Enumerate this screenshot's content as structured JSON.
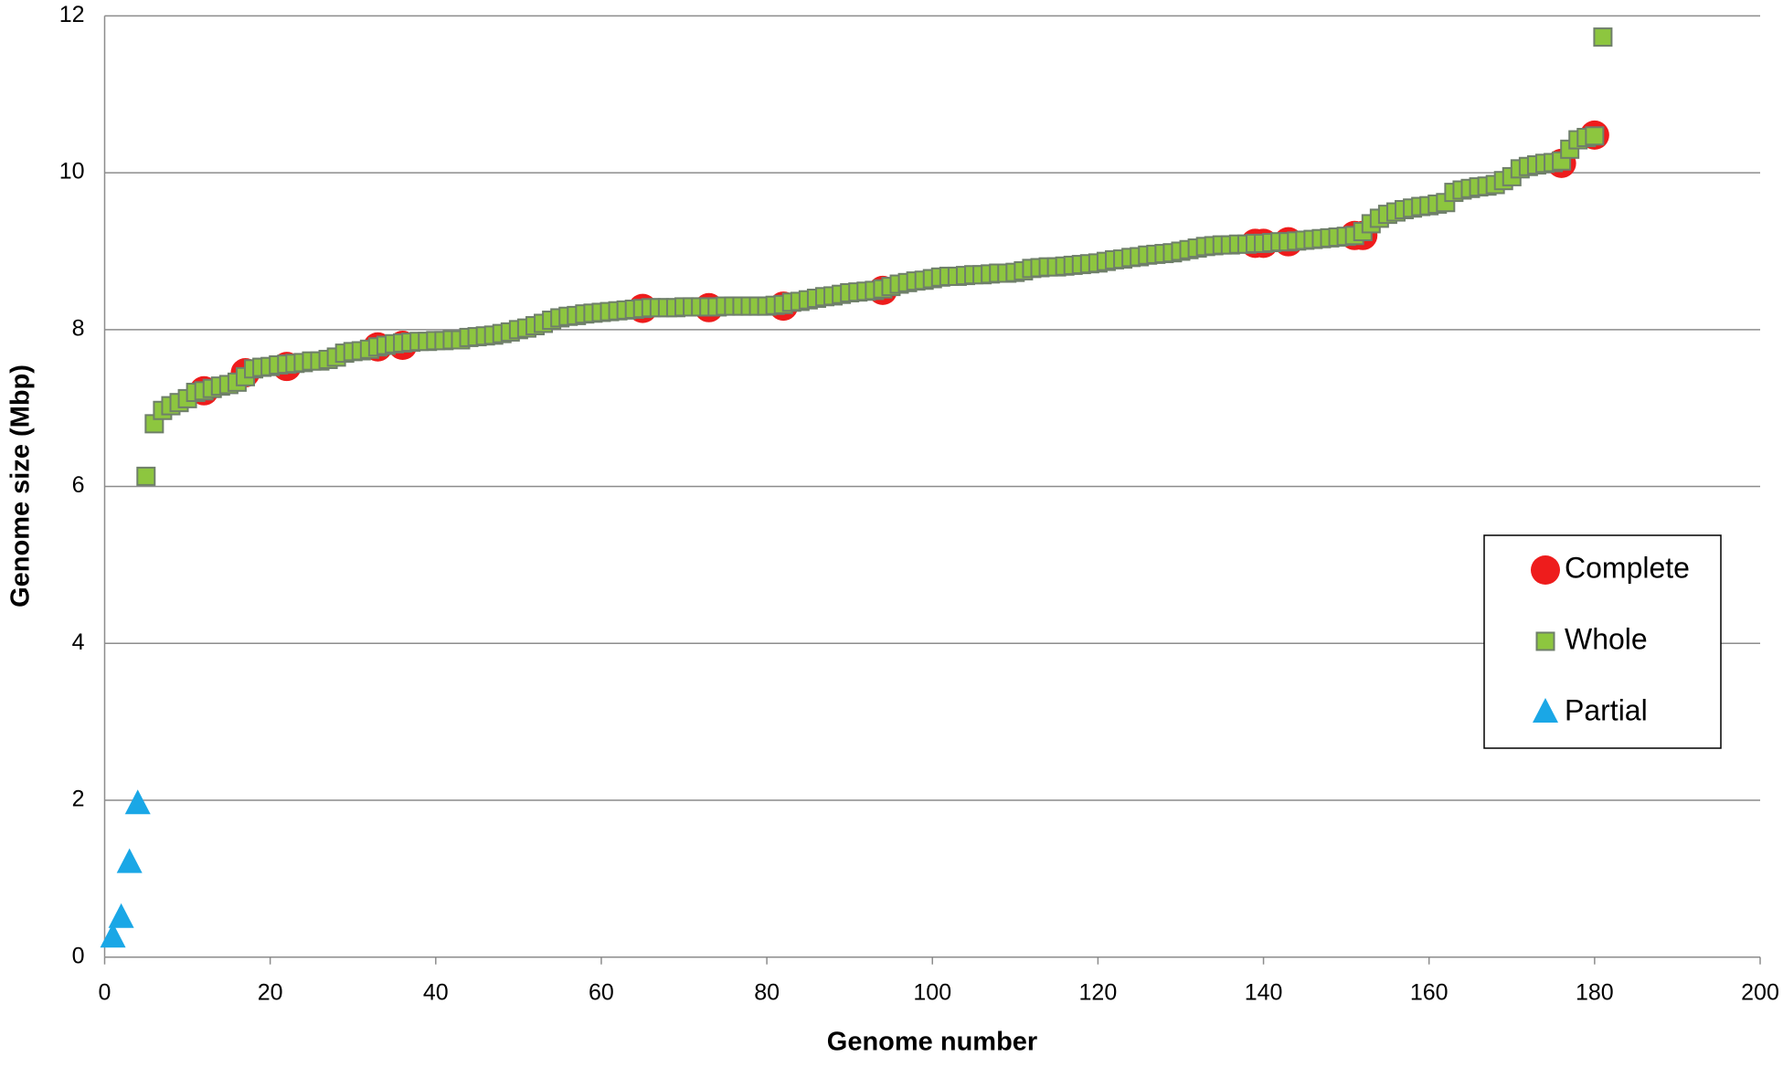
{
  "chart_data": {
    "type": "scatter",
    "x_label": "Genome number",
    "y_label": "Genome size (Mbp)",
    "xlim": [
      0,
      200
    ],
    "xticks": [
      0,
      20,
      40,
      60,
      80,
      100,
      120,
      140,
      160,
      180,
      200
    ],
    "ylim": [
      0,
      12
    ],
    "yticks": [
      0,
      2,
      4,
      6,
      8,
      10,
      12
    ],
    "grid": true,
    "legend": "right",
    "series": [
      {
        "name": "Complete",
        "color": "#ee1c1c",
        "marker": "circle",
        "x": [
          12,
          17,
          22,
          33,
          36,
          65,
          73,
          82,
          94,
          139,
          140,
          143,
          151,
          152,
          176,
          180
        ],
        "values": [
          7.22,
          7.45,
          7.53,
          7.78,
          7.8,
          8.27,
          8.28,
          8.3,
          8.5,
          9.1,
          9.1,
          9.12,
          9.2,
          9.2,
          10.12,
          10.48
        ]
      },
      {
        "name": "Whole",
        "color": "#8dc63f",
        "marker": "square",
        "x": [
          5,
          6,
          7,
          8,
          9,
          10,
          11,
          12,
          13,
          14,
          15,
          16,
          17,
          18,
          19,
          20,
          21,
          22,
          23,
          24,
          25,
          26,
          27,
          28,
          29,
          30,
          31,
          32,
          33,
          34,
          35,
          36,
          37,
          38,
          39,
          40,
          41,
          42,
          43,
          44,
          45,
          46,
          47,
          48,
          49,
          50,
          51,
          52,
          53,
          54,
          55,
          56,
          57,
          58,
          59,
          60,
          61,
          62,
          63,
          64,
          65,
          66,
          67,
          68,
          69,
          70,
          71,
          72,
          73,
          74,
          75,
          76,
          77,
          78,
          79,
          80,
          81,
          82,
          83,
          84,
          85,
          86,
          87,
          88,
          89,
          90,
          91,
          92,
          93,
          94,
          95,
          96,
          97,
          98,
          99,
          100,
          101,
          102,
          103,
          104,
          105,
          106,
          107,
          108,
          109,
          110,
          111,
          112,
          113,
          114,
          115,
          116,
          117,
          118,
          119,
          120,
          121,
          122,
          123,
          124,
          125,
          126,
          127,
          128,
          129,
          130,
          131,
          132,
          133,
          134,
          135,
          136,
          137,
          138,
          139,
          140,
          141,
          142,
          143,
          144,
          145,
          146,
          147,
          148,
          149,
          150,
          151,
          152,
          153,
          154,
          155,
          156,
          157,
          158,
          159,
          160,
          161,
          162,
          163,
          164,
          165,
          166,
          167,
          168,
          169,
          170,
          171,
          172,
          173,
          174,
          175,
          176,
          177,
          178,
          179,
          180,
          181
        ],
        "values": [
          6.13,
          6.8,
          6.97,
          7.03,
          7.07,
          7.12,
          7.2,
          7.22,
          7.25,
          7.28,
          7.3,
          7.33,
          7.4,
          7.5,
          7.52,
          7.53,
          7.55,
          7.56,
          7.57,
          7.58,
          7.6,
          7.6,
          7.62,
          7.65,
          7.7,
          7.72,
          7.73,
          7.75,
          7.78,
          7.8,
          7.82,
          7.83,
          7.84,
          7.85,
          7.85,
          7.86,
          7.86,
          7.87,
          7.87,
          7.9,
          7.91,
          7.92,
          7.93,
          7.95,
          7.97,
          8.0,
          8.02,
          8.05,
          8.08,
          8.12,
          8.15,
          8.17,
          8.18,
          8.2,
          8.21,
          8.22,
          8.23,
          8.24,
          8.25,
          8.26,
          8.27,
          8.28,
          8.28,
          8.28,
          8.28,
          8.29,
          8.29,
          8.29,
          8.29,
          8.29,
          8.3,
          8.3,
          8.3,
          8.3,
          8.3,
          8.3,
          8.31,
          8.32,
          8.35,
          8.36,
          8.38,
          8.4,
          8.42,
          8.43,
          8.45,
          8.47,
          8.48,
          8.49,
          8.5,
          8.52,
          8.55,
          8.58,
          8.6,
          8.62,
          8.63,
          8.65,
          8.67,
          8.68,
          8.68,
          8.69,
          8.7,
          8.7,
          8.71,
          8.72,
          8.72,
          8.73,
          8.75,
          8.78,
          8.79,
          8.8,
          8.8,
          8.81,
          8.82,
          8.83,
          8.84,
          8.85,
          8.87,
          8.89,
          8.9,
          8.92,
          8.93,
          8.95,
          8.96,
          8.97,
          8.98,
          9.0,
          9.02,
          9.04,
          9.06,
          9.07,
          9.08,
          9.08,
          9.09,
          9.09,
          9.1,
          9.1,
          9.11,
          9.12,
          9.12,
          9.13,
          9.14,
          9.15,
          9.16,
          9.17,
          9.18,
          9.19,
          9.2,
          9.25,
          9.35,
          9.42,
          9.47,
          9.5,
          9.53,
          9.55,
          9.57,
          9.58,
          9.6,
          9.62,
          9.75,
          9.78,
          9.8,
          9.82,
          9.83,
          9.85,
          9.9,
          9.95,
          10.05,
          10.08,
          10.1,
          10.12,
          10.13,
          10.15,
          10.3,
          10.42,
          10.45,
          10.47,
          11.73
        ]
      },
      {
        "name": "Partial",
        "color": "#1aa7e6",
        "marker": "triangle",
        "x": [
          1,
          2,
          3,
          4
        ],
        "values": [
          0.25,
          0.5,
          1.2,
          1.95
        ]
      }
    ]
  }
}
